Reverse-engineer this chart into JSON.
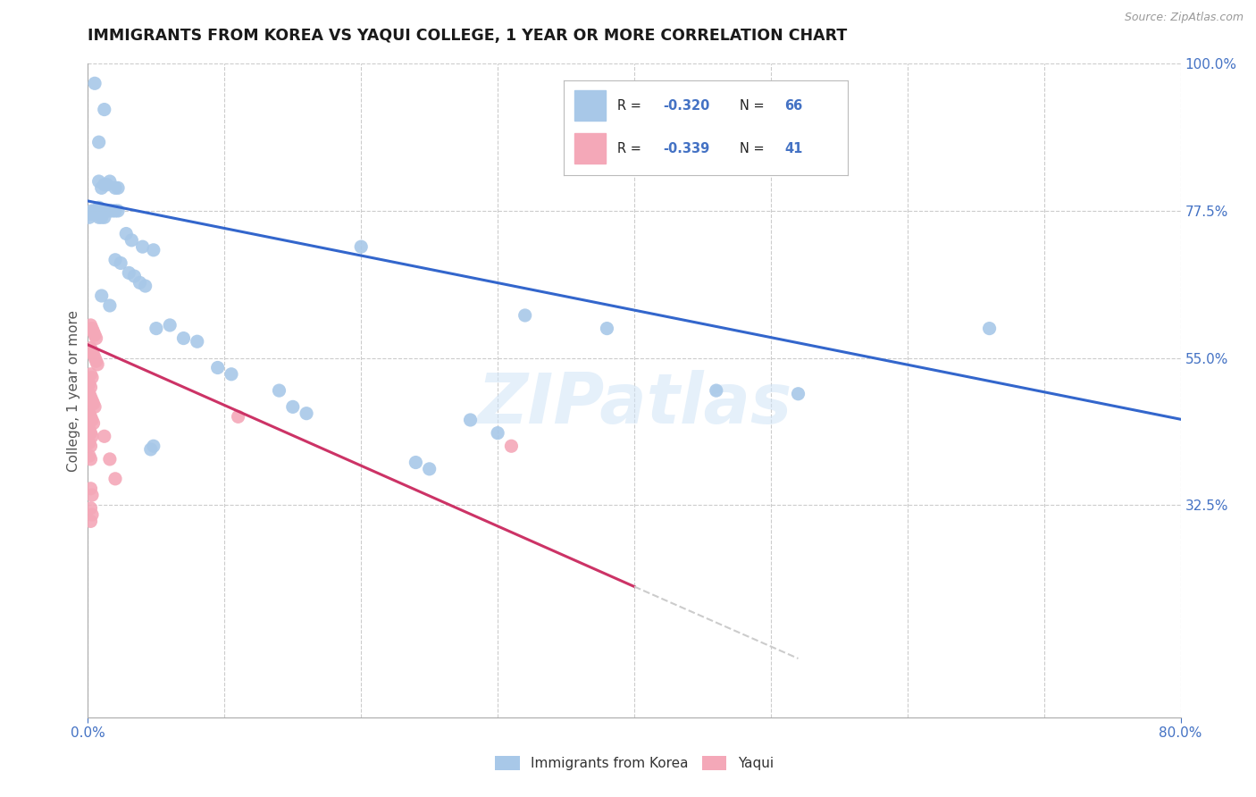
{
  "title": "IMMIGRANTS FROM KOREA VS YAQUI COLLEGE, 1 YEAR OR MORE CORRELATION CHART",
  "source": "Source: ZipAtlas.com",
  "ylabel": "College, 1 year or more",
  "x_min": 0.0,
  "x_max": 0.8,
  "y_min": 0.0,
  "y_max": 1.0,
  "legend_labels": [
    "Immigrants from Korea",
    "Yaqui"
  ],
  "blue_color": "#a8c8e8",
  "pink_color": "#f4a8b8",
  "line_blue": "#3366cc",
  "line_pink": "#cc3366",
  "line_dashed_color": "#cccccc",
  "watermark": "ZIPatlas",
  "axis_color": "#4472c4",
  "gridline_color": "#cccccc",
  "gridline_y": [
    0.325,
    0.55,
    0.775,
    1.0
  ],
  "gridline_x": [
    0.0,
    0.1,
    0.2,
    0.3,
    0.4,
    0.5,
    0.6,
    0.7,
    0.8
  ],
  "ytick_positions": [
    0.325,
    0.55,
    0.775,
    1.0
  ],
  "ytick_labels": [
    "32.5%",
    "55.0%",
    "77.5%",
    "100.0%"
  ],
  "xtick_positions": [
    0.0,
    0.8
  ],
  "xtick_labels": [
    "0.0%",
    "80.0%"
  ],
  "blue_scatter": [
    [
      0.005,
      0.97
    ],
    [
      0.012,
      0.93
    ],
    [
      0.008,
      0.88
    ],
    [
      0.008,
      0.82
    ],
    [
      0.01,
      0.81
    ],
    [
      0.012,
      0.815
    ],
    [
      0.014,
      0.815
    ],
    [
      0.016,
      0.82
    ],
    [
      0.02,
      0.81
    ],
    [
      0.022,
      0.81
    ],
    [
      0.006,
      0.775
    ],
    [
      0.008,
      0.78
    ],
    [
      0.01,
      0.775
    ],
    [
      0.012,
      0.775
    ],
    [
      0.014,
      0.775
    ],
    [
      0.016,
      0.775
    ],
    [
      0.018,
      0.775
    ],
    [
      0.02,
      0.775
    ],
    [
      0.022,
      0.775
    ],
    [
      0.006,
      0.77
    ],
    [
      0.008,
      0.765
    ],
    [
      0.01,
      0.765
    ],
    [
      0.012,
      0.765
    ],
    [
      0.003,
      0.775
    ],
    [
      0.005,
      0.775
    ],
    [
      0.002,
      0.77
    ],
    [
      0.004,
      0.77
    ],
    [
      0.001,
      0.765
    ],
    [
      0.028,
      0.74
    ],
    [
      0.032,
      0.73
    ],
    [
      0.04,
      0.72
    ],
    [
      0.048,
      0.715
    ],
    [
      0.02,
      0.7
    ],
    [
      0.024,
      0.695
    ],
    [
      0.03,
      0.68
    ],
    [
      0.034,
      0.675
    ],
    [
      0.038,
      0.665
    ],
    [
      0.042,
      0.66
    ],
    [
      0.01,
      0.645
    ],
    [
      0.016,
      0.63
    ],
    [
      0.2,
      0.72
    ],
    [
      0.06,
      0.6
    ],
    [
      0.05,
      0.595
    ],
    [
      0.07,
      0.58
    ],
    [
      0.08,
      0.575
    ],
    [
      0.32,
      0.615
    ],
    [
      0.38,
      0.595
    ],
    [
      0.095,
      0.535
    ],
    [
      0.105,
      0.525
    ],
    [
      0.14,
      0.5
    ],
    [
      0.15,
      0.475
    ],
    [
      0.16,
      0.465
    ],
    [
      0.28,
      0.455
    ],
    [
      0.3,
      0.435
    ],
    [
      0.46,
      0.5
    ],
    [
      0.52,
      0.495
    ],
    [
      0.24,
      0.39
    ],
    [
      0.25,
      0.38
    ],
    [
      0.66,
      0.595
    ],
    [
      0.048,
      0.415
    ],
    [
      0.046,
      0.41
    ]
  ],
  "pink_scatter": [
    [
      0.002,
      0.6
    ],
    [
      0.003,
      0.595
    ],
    [
      0.004,
      0.59
    ],
    [
      0.005,
      0.585
    ],
    [
      0.006,
      0.58
    ],
    [
      0.002,
      0.565
    ],
    [
      0.003,
      0.56
    ],
    [
      0.004,
      0.555
    ],
    [
      0.005,
      0.55
    ],
    [
      0.006,
      0.545
    ],
    [
      0.007,
      0.54
    ],
    [
      0.002,
      0.525
    ],
    [
      0.003,
      0.52
    ],
    [
      0.001,
      0.51
    ],
    [
      0.002,
      0.505
    ],
    [
      0.001,
      0.495
    ],
    [
      0.002,
      0.49
    ],
    [
      0.003,
      0.485
    ],
    [
      0.004,
      0.48
    ],
    [
      0.005,
      0.475
    ],
    [
      0.001,
      0.465
    ],
    [
      0.002,
      0.46
    ],
    [
      0.003,
      0.455
    ],
    [
      0.004,
      0.45
    ],
    [
      0.001,
      0.44
    ],
    [
      0.002,
      0.435
    ],
    [
      0.003,
      0.43
    ],
    [
      0.001,
      0.42
    ],
    [
      0.002,
      0.415
    ],
    [
      0.001,
      0.4
    ],
    [
      0.002,
      0.395
    ],
    [
      0.012,
      0.43
    ],
    [
      0.016,
      0.395
    ],
    [
      0.02,
      0.365
    ],
    [
      0.002,
      0.35
    ],
    [
      0.003,
      0.34
    ],
    [
      0.002,
      0.32
    ],
    [
      0.003,
      0.31
    ],
    [
      0.002,
      0.3
    ],
    [
      0.11,
      0.46
    ],
    [
      0.31,
      0.415
    ]
  ],
  "blue_line_x": [
    0.0,
    0.8
  ],
  "blue_line_y": [
    0.79,
    0.456
  ],
  "pink_line_x": [
    0.0,
    0.4
  ],
  "pink_line_y": [
    0.57,
    0.2
  ],
  "dashed_line_x": [
    0.4,
    0.52
  ],
  "dashed_line_y": [
    0.2,
    0.09
  ]
}
